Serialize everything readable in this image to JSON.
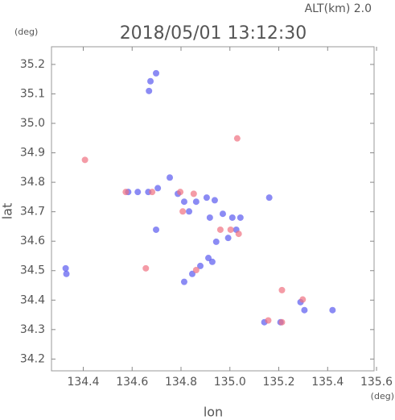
{
  "chart_data": {
    "type": "scatter",
    "title": "2018/05/01 13:12:30",
    "subtitle": "ALT(km)  2.0",
    "y_unit": "(deg)",
    "x_unit": "(deg)",
    "ylabel": "lat",
    "xlabel": "lon",
    "xlim": [
      134.27,
      135.59
    ],
    "ylim": [
      34.16,
      35.26
    ],
    "xticks": [
      134.4,
      134.6,
      134.8,
      {
        "value": 135,
        "label": "135.0"
      },
      135.2,
      135.4,
      135.6
    ],
    "yticks": [
      34.2,
      34.3,
      34.4,
      34.5,
      34.6,
      34.7,
      34.8,
      34.9,
      {
        "value": 35,
        "label": "35.0"
      },
      35.1,
      35.2
    ],
    "series": [
      {
        "color": "#5a5af0",
        "x": [
          134.675,
          134.669,
          134.698,
          134.328,
          134.331,
          134.584,
          134.623,
          134.666,
          134.705,
          134.754,
          134.787,
          134.813,
          134.833,
          134.862,
          134.905,
          134.938,
          134.918,
          134.971,
          135.01,
          135.043,
          135.026,
          134.993,
          134.944,
          134.912,
          134.879,
          134.846,
          134.813,
          134.928,
          135.161,
          135.141,
          135.207,
          135.289,
          135.305,
          135.42,
          134.698
        ],
        "values": [
          35.143,
          35.11,
          35.17,
          34.508,
          34.489,
          34.767,
          34.767,
          34.767,
          34.78,
          34.816,
          34.761,
          34.734,
          34.701,
          34.734,
          34.748,
          34.739,
          34.68,
          34.693,
          34.68,
          34.68,
          34.639,
          34.611,
          34.598,
          34.543,
          34.516,
          34.489,
          34.462,
          34.53,
          34.748,
          34.325,
          34.325,
          34.393,
          34.366,
          34.366,
          34.639
        ]
      },
      {
        "color": "#f07080",
        "x": [
          135.03,
          134.407,
          134.574,
          134.682,
          134.797,
          134.852,
          134.807,
          135.003,
          135.036,
          134.862,
          134.656,
          135.157,
          135.213,
          135.298,
          135.213,
          134.961
        ],
        "values": [
          34.949,
          34.876,
          34.767,
          34.767,
          34.767,
          34.761,
          34.701,
          34.639,
          34.625,
          34.502,
          34.508,
          34.331,
          34.325,
          34.402,
          34.434,
          34.639
        ]
      }
    ]
  }
}
